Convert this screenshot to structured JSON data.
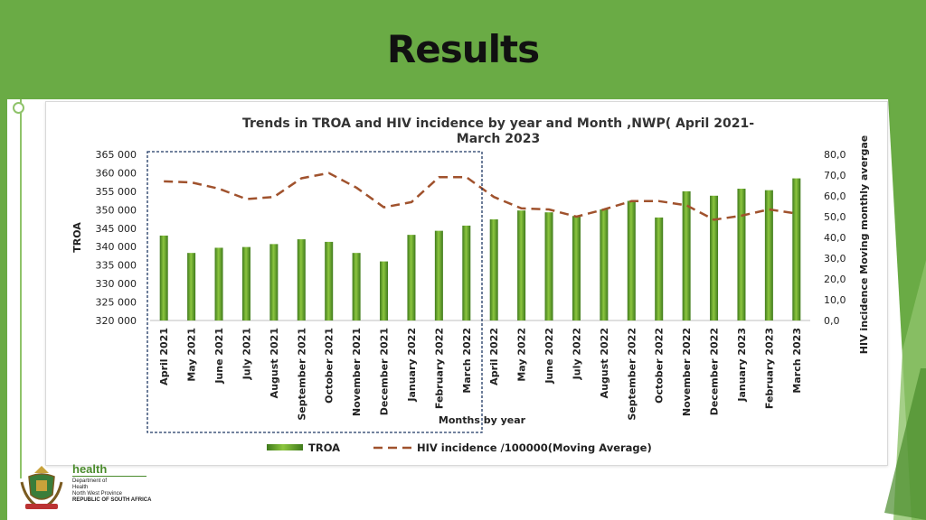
{
  "slide": {
    "title": "Results"
  },
  "logo": {
    "brand": "health",
    "lines": [
      "Department of",
      "Health",
      "North West Province",
      "REPUBLIC OF SOUTH AFRICA"
    ]
  },
  "colors": {
    "band": "#6aab45",
    "bar": "#5e9a2c",
    "line": "#a0522d",
    "title": "#333333"
  },
  "chart_data": {
    "type": "bar",
    "title_lines": [
      "Trends in TROA and HIV incidence by year and Month ,NWP( April 2021-",
      "March 2023"
    ],
    "xlabel": "Months by year",
    "ylabel": "TROA",
    "y2label": "HIV incidence Moving monthly  avergae",
    "categories": [
      "April 2021",
      "May 2021",
      "June 2021",
      "July 2021",
      "August 2021",
      "September 2021",
      "October 2021",
      "November 2021",
      "December 2021",
      "January 2022",
      "February 2022",
      "March 2022",
      "April 2022",
      "May 2022",
      "June 2022",
      "July 2022",
      "August 2022",
      "September 2022",
      "October 2022",
      "November 2022",
      "December 2022",
      "January 2023",
      "February 2023",
      "March 2023"
    ],
    "ylim": [
      320000,
      365000
    ],
    "y_ticks": [
      "320 000",
      "325 000",
      "330 000",
      "335 000",
      "340 000",
      "345 000",
      "350 000",
      "355 000",
      "360 000",
      "365 000"
    ],
    "y2lim": [
      0,
      80
    ],
    "y2_ticks": [
      "0,0",
      "10,0",
      "20,0",
      "30,0",
      "40,0",
      "50,0",
      "60,0",
      "70,0",
      "80,0"
    ],
    "series": [
      {
        "name": "TROA",
        "kind": "bar",
        "values": [
          343000,
          338300,
          339700,
          339900,
          340700,
          342000,
          341300,
          338300,
          336000,
          343200,
          344300,
          345700,
          347400,
          349800,
          349300,
          348300,
          350100,
          352400,
          347900,
          355000,
          353800,
          355700,
          355300,
          358500
        ]
      },
      {
        "name": "HIV  incidence /100000(Moving Average)",
        "kind": "line",
        "values": [
          67,
          66.5,
          63.5,
          58.5,
          59.5,
          68.5,
          71,
          64,
          54.5,
          57,
          69,
          69,
          59.5,
          54,
          53.5,
          50,
          53.5,
          57.5,
          57.5,
          55.5,
          48.5,
          50.5,
          53.5,
          51.5
        ]
      }
    ],
    "highlight_box": "April 2021 - March 2022",
    "legend_position": "bottom"
  }
}
